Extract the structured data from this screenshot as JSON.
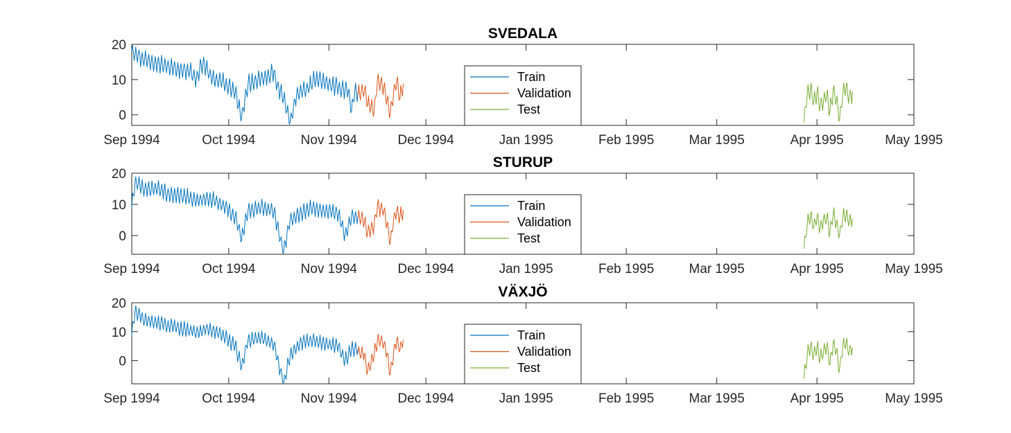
{
  "chart_data": [
    {
      "type": "line",
      "title": "SVEDALA",
      "x_ticks": [
        "Sep 1994",
        "Oct 1994",
        "Nov 1994",
        "Dec 1994",
        "Jan 1995",
        "Feb 1995",
        "Mar 1995",
        "Apr 1995",
        "May 1995"
      ],
      "xlim": [
        "1994-09-01",
        "1995-05-01"
      ],
      "y_ticks": [
        "0",
        "10",
        "20"
      ],
      "ylim": [
        -3,
        20
      ],
      "grid": false,
      "legend": "center",
      "series": [
        {
          "name": "Train",
          "color": "#0072BD",
          "date_range": [
            "1994-09-01",
            "1994-11-10"
          ],
          "anchors": [
            [
              0,
              18.5
            ],
            [
              3,
              16
            ],
            [
              7,
              15
            ],
            [
              10,
              14
            ],
            [
              14,
              13
            ],
            [
              18,
              12.5
            ],
            [
              20,
              10
            ],
            [
              22,
              15
            ],
            [
              25,
              10
            ],
            [
              28,
              9.5
            ],
            [
              32,
              6.5
            ],
            [
              34,
              -1
            ],
            [
              36,
              9
            ],
            [
              40,
              10
            ],
            [
              42,
              11
            ],
            [
              44,
              12
            ],
            [
              45,
              8
            ],
            [
              47,
              5
            ],
            [
              49,
              -2.5
            ],
            [
              51,
              6
            ],
            [
              54,
              7
            ],
            [
              57,
              10.5
            ],
            [
              60,
              9
            ],
            [
              63,
              8
            ],
            [
              67,
              7
            ],
            [
              68,
              1
            ],
            [
              69,
              7
            ],
            [
              70,
              6
            ]
          ]
        },
        {
          "name": "Validation",
          "color": "#D95319",
          "date_range": [
            "1994-11-10",
            "1994-11-24"
          ],
          "anchors": [
            [
              0,
              6
            ],
            [
              2,
              7
            ],
            [
              3,
              3
            ],
            [
              5,
              1
            ],
            [
              6,
              10
            ],
            [
              8,
              8
            ],
            [
              9,
              4
            ],
            [
              10,
              0
            ],
            [
              11,
              6
            ],
            [
              12,
              10
            ],
            [
              13,
              5
            ],
            [
              14,
              8.5
            ]
          ]
        },
        {
          "name": "Test",
          "color": "#77AC30",
          "date_range": [
            "1995-03-28",
            "1995-04-12"
          ],
          "anchors": [
            [
              0,
              -2
            ],
            [
              1,
              6
            ],
            [
              2,
              7
            ],
            [
              3,
              4
            ],
            [
              4,
              6
            ],
            [
              5,
              3
            ],
            [
              6,
              4
            ],
            [
              7,
              6
            ],
            [
              8,
              1
            ],
            [
              9,
              7
            ],
            [
              10,
              4
            ],
            [
              11,
              -1
            ],
            [
              12,
              6
            ],
            [
              13,
              8
            ],
            [
              14,
              5
            ],
            [
              15,
              6
            ]
          ]
        }
      ]
    },
    {
      "type": "line",
      "title": "STURUP",
      "x_ticks": [
        "Sep 1994",
        "Oct 1994",
        "Nov 1994",
        "Dec 1994",
        "Jan 1995",
        "Feb 1995",
        "Mar 1995",
        "Apr 1995",
        "May 1995"
      ],
      "xlim": [
        "1994-09-01",
        "1995-05-01"
      ],
      "y_ticks": [
        "0",
        "10",
        "20"
      ],
      "ylim": [
        -6,
        20
      ],
      "grid": false,
      "legend": "center",
      "series": [
        {
          "name": "Train",
          "color": "#0072BD",
          "date_range": [
            "1994-09-01",
            "1994-11-10"
          ],
          "anchors": [
            [
              0,
              9
            ],
            [
              1,
              17
            ],
            [
              4,
              15
            ],
            [
              8,
              15
            ],
            [
              12,
              13
            ],
            [
              16,
              13
            ],
            [
              20,
              11
            ],
            [
              24,
              12
            ],
            [
              28,
              10
            ],
            [
              32,
              6
            ],
            [
              34,
              -1
            ],
            [
              36,
              8
            ],
            [
              40,
              9
            ],
            [
              44,
              8
            ],
            [
              45,
              3
            ],
            [
              47,
              -5
            ],
            [
              49,
              5
            ],
            [
              52,
              7
            ],
            [
              56,
              9
            ],
            [
              60,
              8
            ],
            [
              64,
              7
            ],
            [
              66,
              0
            ],
            [
              68,
              6
            ],
            [
              70,
              6
            ]
          ]
        },
        {
          "name": "Validation",
          "color": "#D95319",
          "date_range": [
            "1994-11-10",
            "1994-11-24"
          ],
          "anchors": [
            [
              0,
              6
            ],
            [
              2,
              5
            ],
            [
              3,
              1
            ],
            [
              5,
              3
            ],
            [
              6,
              9
            ],
            [
              8,
              8
            ],
            [
              9,
              4
            ],
            [
              10,
              -2
            ],
            [
              11,
              5
            ],
            [
              12,
              8
            ],
            [
              13,
              6
            ],
            [
              14,
              8
            ]
          ]
        },
        {
          "name": "Test",
          "color": "#77AC30",
          "date_range": [
            "1995-03-28",
            "1995-04-12"
          ],
          "anchors": [
            [
              0,
              -4
            ],
            [
              1,
              4
            ],
            [
              2,
              6
            ],
            [
              3,
              3
            ],
            [
              4,
              6
            ],
            [
              5,
              2
            ],
            [
              6,
              5
            ],
            [
              7,
              6
            ],
            [
              8,
              1
            ],
            [
              9,
              7
            ],
            [
              10,
              4
            ],
            [
              11,
              0
            ],
            [
              12,
              6
            ],
            [
              13,
              7
            ],
            [
              14,
              4
            ],
            [
              15,
              6
            ]
          ]
        }
      ]
    },
    {
      "type": "line",
      "title": "VÄXJÖ",
      "x_ticks": [
        "Sep 1994",
        "Oct 1994",
        "Nov 1994",
        "Dec 1994",
        "Jan 1995",
        "Feb 1995",
        "Mar 1995",
        "Apr 1995",
        "May 1995"
      ],
      "xlim": [
        "1994-09-01",
        "1995-05-01"
      ],
      "y_ticks": [
        "0",
        "10",
        "20"
      ],
      "ylim": [
        -8,
        20
      ],
      "grid": false,
      "legend": "center",
      "series": [
        {
          "name": "Train",
          "color": "#0072BD",
          "date_range": [
            "1994-09-01",
            "1994-11-10"
          ],
          "anchors": [
            [
              0,
              9
            ],
            [
              1,
              17
            ],
            [
              4,
              14
            ],
            [
              8,
              13
            ],
            [
              12,
              12
            ],
            [
              16,
              11
            ],
            [
              20,
              10
            ],
            [
              24,
              11
            ],
            [
              28,
              9
            ],
            [
              32,
              5
            ],
            [
              34,
              -2
            ],
            [
              36,
              7
            ],
            [
              40,
              8
            ],
            [
              44,
              6
            ],
            [
              45,
              1
            ],
            [
              47,
              -8
            ],
            [
              49,
              2
            ],
            [
              52,
              6
            ],
            [
              56,
              7
            ],
            [
              60,
              6
            ],
            [
              64,
              5
            ],
            [
              66,
              0
            ],
            [
              68,
              4
            ],
            [
              70,
              4
            ]
          ]
        },
        {
          "name": "Validation",
          "color": "#D95319",
          "date_range": [
            "1994-11-10",
            "1994-11-24"
          ],
          "anchors": [
            [
              0,
              3
            ],
            [
              2,
              2
            ],
            [
              3,
              -4
            ],
            [
              5,
              2
            ],
            [
              6,
              7
            ],
            [
              8,
              6
            ],
            [
              9,
              2
            ],
            [
              10,
              -5
            ],
            [
              11,
              3
            ],
            [
              12,
              7
            ],
            [
              13,
              4
            ],
            [
              14,
              7
            ]
          ]
        },
        {
          "name": "Test",
          "color": "#77AC30",
          "date_range": [
            "1995-03-28",
            "1995-04-12"
          ],
          "anchors": [
            [
              0,
              -6
            ],
            [
              1,
              2
            ],
            [
              2,
              5
            ],
            [
              3,
              2
            ],
            [
              4,
              5
            ],
            [
              5,
              1
            ],
            [
              6,
              3
            ],
            [
              7,
              5
            ],
            [
              8,
              -1
            ],
            [
              9,
              6
            ],
            [
              10,
              3
            ],
            [
              11,
              -3
            ],
            [
              12,
              5
            ],
            [
              13,
              6
            ],
            [
              14,
              3
            ],
            [
              15,
              5
            ]
          ]
        }
      ]
    }
  ]
}
